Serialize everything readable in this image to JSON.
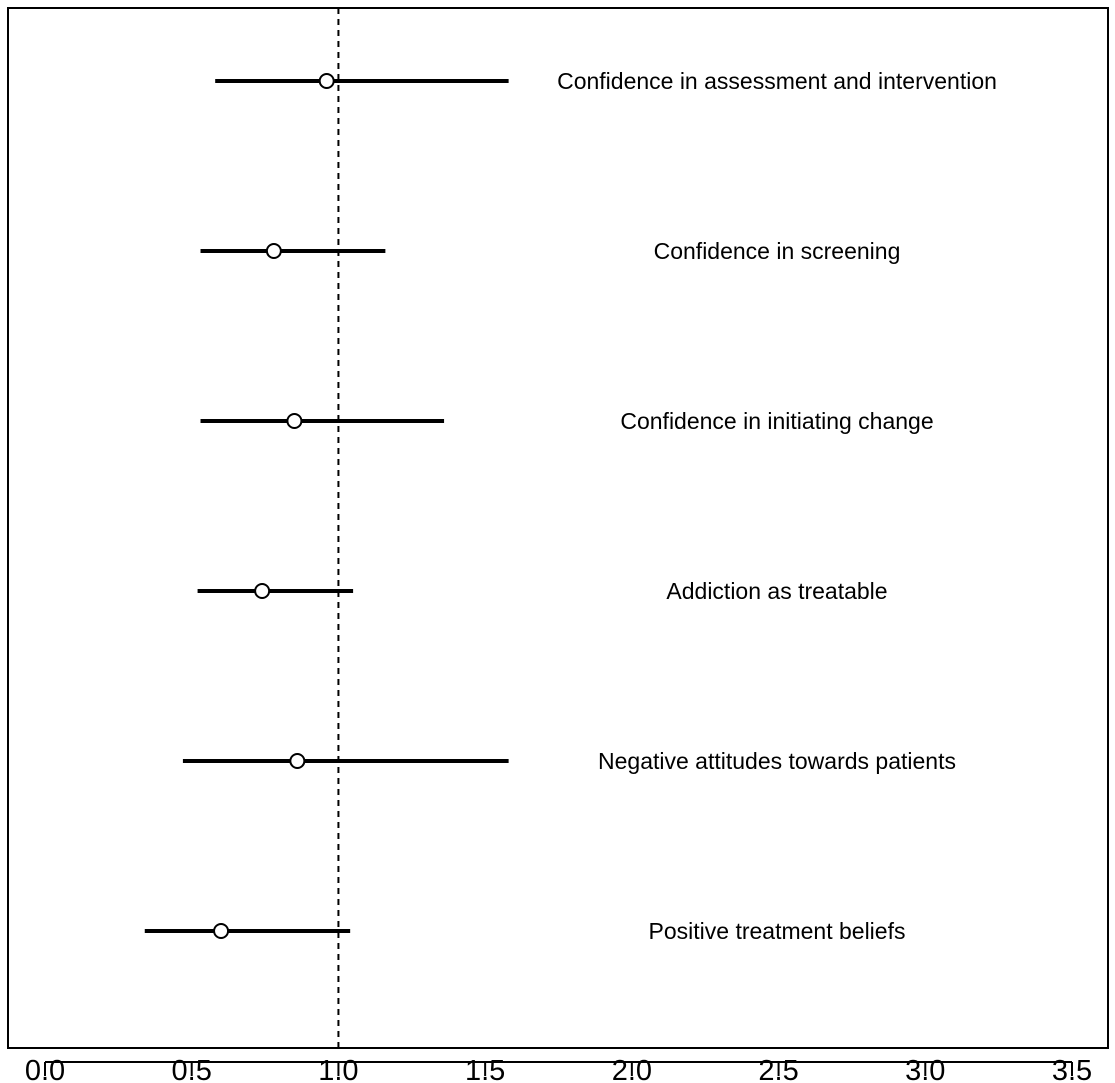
{
  "chart_data": {
    "type": "forest",
    "title": "",
    "xlabel": "",
    "ylabel": "",
    "xlim": [
      0.0,
      3.5
    ],
    "x_ticks": [
      "0.0",
      "0.5",
      "1.0",
      "1.5",
      "2.0",
      "2.5",
      "3.0",
      "3.5"
    ],
    "reference_line": 1.0,
    "grid": false,
    "series": [
      {
        "label": "Confidence in assessment and intervention",
        "estimate": 0.96,
        "lower": 0.58,
        "upper": 1.58
      },
      {
        "label": "Confidence in screening",
        "estimate": 0.78,
        "lower": 0.53,
        "upper": 1.16
      },
      {
        "label": "Confidence in initiating change",
        "estimate": 0.85,
        "lower": 0.53,
        "upper": 1.36
      },
      {
        "label": "Addiction as treatable",
        "estimate": 0.74,
        "lower": 0.52,
        "upper": 1.05
      },
      {
        "label": "Negative attitudes towards patients",
        "estimate": 0.86,
        "lower": 0.47,
        "upper": 1.58
      },
      {
        "label": "Positive treatment beliefs",
        "estimate": 0.6,
        "lower": 0.34,
        "upper": 1.04
      }
    ]
  }
}
